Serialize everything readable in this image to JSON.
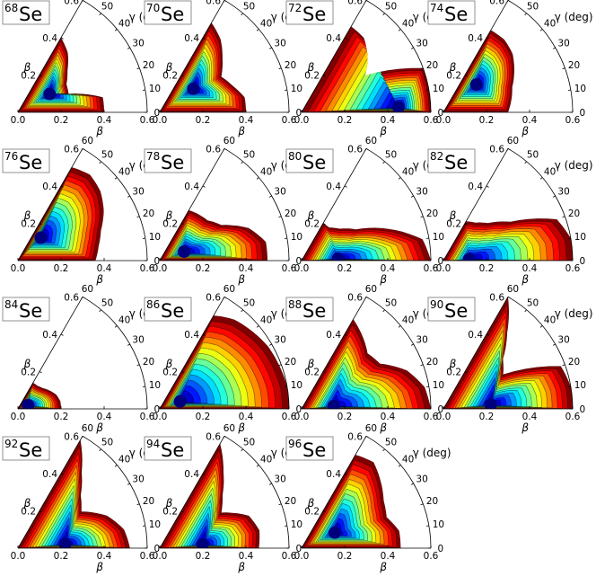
{
  "figure": {
    "element_symbol": "Se",
    "beta_label": "β",
    "gamma_label": "γ (deg)",
    "beta_ticks": [
      "0.0",
      "0.2",
      "0.4",
      "0.6"
    ],
    "gamma_ticks": [
      "0",
      "10",
      "20",
      "30",
      "40",
      "50",
      "60"
    ],
    "colormap": [
      "#00007f",
      "#0000ff",
      "#007fff",
      "#00ffff",
      "#7fff7f",
      "#ffff00",
      "#ff7f00",
      "#ff0000",
      "#7f0000"
    ]
  },
  "chart_data": [
    {
      "type": "heatmap",
      "mass_number": "68",
      "symbol": "Se",
      "beta_range": [
        0,
        0.6
      ],
      "gamma_range_deg": [
        0,
        60
      ],
      "energy_min": {
        "beta": 0.17,
        "gamma_deg": 30
      },
      "extent": [
        [
          0,
          0.4
        ],
        [
          10,
          0.4
        ],
        [
          20,
          0.25
        ],
        [
          30,
          0.26
        ],
        [
          40,
          0.3
        ],
        [
          50,
          0.36
        ],
        [
          60,
          0.4
        ]
      ]
    },
    {
      "type": "heatmap",
      "mass_number": "70",
      "symbol": "Se",
      "beta_range": [
        0,
        0.6
      ],
      "gamma_range_deg": [
        0,
        60
      ],
      "energy_min": {
        "beta": 0.19,
        "gamma_deg": 35
      },
      "extent": [
        [
          0,
          0.4
        ],
        [
          10,
          0.4
        ],
        [
          20,
          0.36
        ],
        [
          30,
          0.33
        ],
        [
          40,
          0.38
        ],
        [
          50,
          0.44
        ],
        [
          60,
          0.48
        ]
      ]
    },
    {
      "type": "heatmap",
      "mass_number": "72",
      "symbol": "Se",
      "beta_range": [
        0,
        0.6
      ],
      "gamma_range_deg": [
        0,
        60
      ],
      "energy_min": {
        "beta": 0.45,
        "gamma_deg": 3
      },
      "extent": [
        [
          0,
          0.6
        ],
        [
          10,
          0.6
        ],
        [
          20,
          0.6
        ],
        [
          30,
          0.34
        ],
        [
          40,
          0.4
        ],
        [
          50,
          0.45
        ],
        [
          60,
          0.46
        ]
      ]
    },
    {
      "type": "heatmap",
      "mass_number": "74",
      "symbol": "Se",
      "beta_range": [
        0,
        0.6
      ],
      "gamma_range_deg": [
        0,
        60
      ],
      "energy_min": {
        "beta": 0.2,
        "gamma_deg": 40
      },
      "extent": [
        [
          0,
          0.3
        ],
        [
          10,
          0.32
        ],
        [
          20,
          0.34
        ],
        [
          30,
          0.38
        ],
        [
          40,
          0.42
        ],
        [
          50,
          0.44
        ],
        [
          60,
          0.44
        ]
      ]
    },
    {
      "type": "heatmap",
      "mass_number": "76",
      "symbol": "Se",
      "beta_range": [
        0,
        0.6
      ],
      "gamma_range_deg": [
        0,
        60
      ],
      "energy_min": {
        "beta": 0.15,
        "gamma_deg": 45
      },
      "extent": [
        [
          0,
          0.36
        ],
        [
          10,
          0.38
        ],
        [
          20,
          0.41
        ],
        [
          30,
          0.46
        ],
        [
          40,
          0.5
        ],
        [
          50,
          0.52
        ],
        [
          60,
          0.5
        ]
      ]
    },
    {
      "type": "heatmap",
      "mass_number": "78",
      "symbol": "Se",
      "beta_range": [
        0,
        0.6
      ],
      "gamma_range_deg": [
        0,
        60
      ],
      "energy_min": {
        "beta": 0.12,
        "gamma_deg": 20
      },
      "extent": [
        [
          0,
          0.5
        ],
        [
          10,
          0.5
        ],
        [
          20,
          0.44
        ],
        [
          30,
          0.33
        ],
        [
          40,
          0.29
        ],
        [
          50,
          0.28
        ],
        [
          60,
          0.27
        ]
      ]
    },
    {
      "type": "heatmap",
      "mass_number": "80",
      "symbol": "Se",
      "beta_range": [
        0,
        0.6
      ],
      "gamma_range_deg": [
        0,
        60
      ],
      "energy_min": {
        "beta": 0.17,
        "gamma_deg": 3
      },
      "extent": [
        [
          0,
          0.6
        ],
        [
          10,
          0.57
        ],
        [
          20,
          0.43
        ],
        [
          30,
          0.29
        ],
        [
          40,
          0.23
        ],
        [
          50,
          0.2
        ],
        [
          60,
          0.2
        ]
      ]
    },
    {
      "type": "heatmap",
      "mass_number": "82",
      "symbol": "Se",
      "beta_range": [
        0,
        0.6
      ],
      "gamma_range_deg": [
        0,
        60
      ],
      "energy_min": {
        "beta": 0.12,
        "gamma_deg": 3
      },
      "extent": [
        [
          0,
          0.6
        ],
        [
          10,
          0.6
        ],
        [
          20,
          0.56
        ],
        [
          30,
          0.36
        ],
        [
          40,
          0.27
        ],
        [
          50,
          0.23
        ],
        [
          60,
          0.21
        ]
      ]
    },
    {
      "type": "heatmap",
      "mass_number": "84",
      "symbol": "Se",
      "beta_range": [
        0,
        0.6
      ],
      "gamma_range_deg": [
        0,
        60
      ],
      "energy_min": {
        "beta": 0.05,
        "gamma_deg": 20
      },
      "extent": [
        [
          0,
          0.2
        ],
        [
          10,
          0.2
        ],
        [
          20,
          0.19
        ],
        [
          30,
          0.17
        ],
        [
          40,
          0.15
        ],
        [
          50,
          0.14
        ],
        [
          60,
          0.14
        ]
      ]
    },
    {
      "type": "heatmap",
      "mass_number": "86",
      "symbol": "Se",
      "beta_range": [
        0,
        0.6
      ],
      "gamma_range_deg": [
        0,
        60
      ],
      "energy_min": {
        "beta": 0.1,
        "gamma_deg": 20
      },
      "extent": [
        [
          0,
          0.6
        ],
        [
          10,
          0.6
        ],
        [
          20,
          0.59
        ],
        [
          30,
          0.58
        ],
        [
          40,
          0.56
        ],
        [
          50,
          0.54
        ],
        [
          60,
          0.5
        ]
      ]
    },
    {
      "type": "heatmap",
      "mass_number": "88",
      "symbol": "Se",
      "beta_range": [
        0,
        0.6
      ],
      "gamma_range_deg": [
        0,
        60
      ],
      "energy_min": {
        "beta": 0.15,
        "gamma_deg": 5
      },
      "extent": [
        [
          0,
          0.6
        ],
        [
          10,
          0.58
        ],
        [
          20,
          0.52
        ],
        [
          30,
          0.42
        ],
        [
          40,
          0.4
        ],
        [
          50,
          0.44
        ],
        [
          60,
          0.48
        ]
      ]
    },
    {
      "type": "heatmap",
      "mass_number": "90",
      "symbol": "Se",
      "beta_range": [
        0,
        0.6
      ],
      "gamma_range_deg": [
        0,
        60
      ],
      "energy_min": {
        "beta": 0.22,
        "gamma_deg": 5
      },
      "extent": [
        [
          0,
          0.6
        ],
        [
          10,
          0.6
        ],
        [
          20,
          0.58
        ],
        [
          30,
          0.32
        ],
        [
          40,
          0.36
        ],
        [
          50,
          0.46
        ],
        [
          60,
          0.6
        ]
      ]
    },
    {
      "type": "heatmap",
      "mass_number": "92",
      "symbol": "Se",
      "beta_range": [
        0,
        0.6
      ],
      "gamma_range_deg": [
        0,
        60
      ],
      "energy_min": {
        "beta": 0.22,
        "gamma_deg": 5
      },
      "extent": [
        [
          0,
          0.52
        ],
        [
          10,
          0.5
        ],
        [
          20,
          0.44
        ],
        [
          30,
          0.34
        ],
        [
          40,
          0.38
        ],
        [
          50,
          0.46
        ],
        [
          60,
          0.58
        ]
      ]
    },
    {
      "type": "heatmap",
      "mass_number": "94",
      "symbol": "Se",
      "beta_range": [
        0,
        0.6
      ],
      "gamma_range_deg": [
        0,
        60
      ],
      "energy_min": {
        "beta": 0.2,
        "gamma_deg": 5
      },
      "extent": [
        [
          0,
          0.46
        ],
        [
          10,
          0.47
        ],
        [
          20,
          0.44
        ],
        [
          30,
          0.33
        ],
        [
          40,
          0.38
        ],
        [
          50,
          0.46
        ],
        [
          60,
          0.56
        ]
      ]
    },
    {
      "type": "heatmap",
      "mass_number": "96",
      "symbol": "Se",
      "beta_range": [
        0,
        0.6
      ],
      "gamma_range_deg": [
        0,
        60
      ],
      "energy_min": {
        "beta": 0.17,
        "gamma_deg": 25
      },
      "extent": [
        [
          0,
          0.46
        ],
        [
          10,
          0.46
        ],
        [
          20,
          0.42
        ],
        [
          30,
          0.44
        ],
        [
          40,
          0.48
        ],
        [
          50,
          0.52
        ],
        [
          60,
          0.5
        ]
      ]
    }
  ]
}
